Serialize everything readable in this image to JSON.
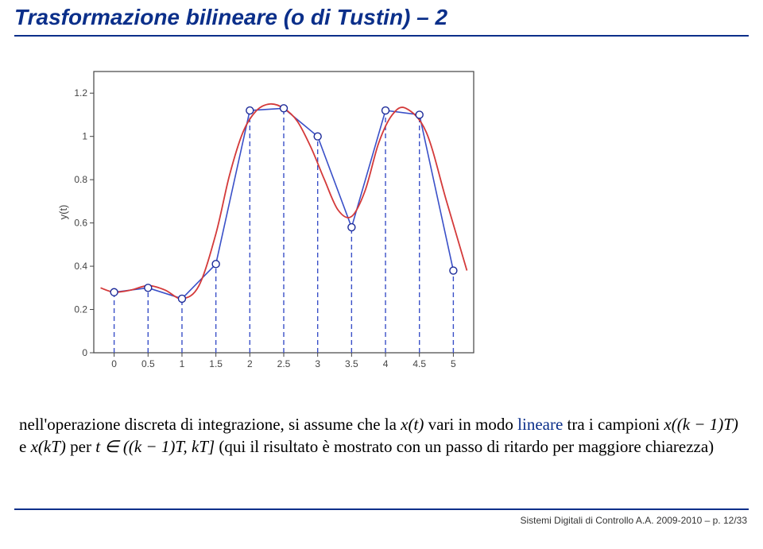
{
  "title": "Trasformazione bilineare (o di Tustin) – 2",
  "footer": "Sistemi Digitali di Controllo A.A. 2009-2010 – p. 12/33",
  "body": {
    "p1a": "nell'operazione discreta di integrazione, si assume che la ",
    "p1_x": "x(t)",
    "p1b": " vari in modo ",
    "p1_linear": "lineare",
    "p1c": " tra i campioni ",
    "p1_xk1": "x((k − 1)T)",
    "p1d": " e ",
    "p1_xk": "x(kT)",
    "p1e": " per ",
    "p1_t": "t ∈ ((k − 1)T, kT]",
    "p1f": " (qui il risultato è mostrato con un passo di ritardo per maggiore chiarezza)"
  },
  "chart": {
    "plot_bg": "#ffffff",
    "axis_color": "#444444",
    "tick_color": "#444444",
    "tick_fontsize": 12,
    "axis_label_fontsize": 13,
    "stem_color": "#3a50c8",
    "stem_dash": "6,4",
    "stem_width": 1.4,
    "marker_stroke": "#1b2a99",
    "marker_fill": "#ffffff",
    "marker_radius": 4.5,
    "sampled_line_color": "#3a50c8",
    "sampled_line_width": 1.6,
    "smooth_line_color": "#d43a3a",
    "smooth_line_width": 1.8,
    "ylabel": "y(t)",
    "xlim": [
      -0.3,
      5.3
    ],
    "ylim": [
      0,
      1.3
    ],
    "xticks": [
      0,
      0.5,
      1,
      1.5,
      2,
      2.5,
      3,
      3.5,
      4,
      4.5,
      5
    ],
    "yticks": [
      0,
      0.2,
      0.4,
      0.6,
      0.8,
      1,
      1.2
    ],
    "samples": {
      "x": [
        0,
        0.5,
        1,
        1.5,
        2,
        2.5,
        3,
        3.5,
        4,
        4.5,
        5
      ],
      "y": [
        0.28,
        0.3,
        0.25,
        0.41,
        1.12,
        1.13,
        1.0,
        0.58,
        1.12,
        1.1,
        0.38
      ]
    },
    "smooth": {
      "x": [
        -0.2,
        0,
        0.25,
        0.5,
        0.75,
        1.0,
        1.25,
        1.5,
        1.7,
        1.9,
        2.1,
        2.3,
        2.5,
        2.7,
        2.9,
        3.1,
        3.3,
        3.5,
        3.7,
        3.9,
        4.1,
        4.3,
        4.6,
        4.9,
        5.2
      ],
      "y": [
        0.3,
        0.28,
        0.29,
        0.31,
        0.29,
        0.25,
        0.31,
        0.55,
        0.82,
        1.02,
        1.12,
        1.15,
        1.13,
        1.07,
        0.95,
        0.8,
        0.66,
        0.63,
        0.75,
        0.97,
        1.1,
        1.13,
        1.02,
        0.7,
        0.38
      ]
    }
  }
}
